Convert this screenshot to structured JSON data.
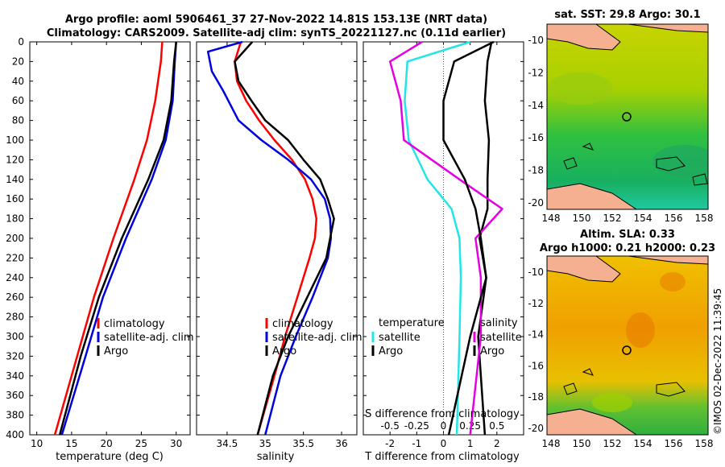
{
  "header": {
    "line1": "Argo profile: aoml 5906461_37 27-Nov-2022 14.81S 153.13E (NRT data)",
    "line2": "Climatology: CARS2009. Satellite-adj clim: synTS_20221127.nc (0.11d earlier)"
  },
  "colors": {
    "climatology": "#ff0000",
    "satellite": "#0000dd",
    "argo": "#000000",
    "t_diff": "#22e6e6",
    "s_diff": "#e600e6"
  },
  "depth_ticks": [
    "0",
    "20",
    "40",
    "60",
    "80",
    "100",
    "120",
    "140",
    "160",
    "180",
    "200",
    "220",
    "240",
    "260",
    "280",
    "300",
    "320",
    "340",
    "360",
    "380",
    "400"
  ],
  "chart_data": [
    {
      "type": "line",
      "title": "",
      "xlabel": "temperature (deg C)",
      "ylabel": "depth",
      "xlim": [
        9,
        32
      ],
      "ylim": [
        400,
        0
      ],
      "xticks": [
        "10",
        "15",
        "20",
        "25",
        "30"
      ],
      "legend": [
        "climatology",
        "satellite-adj. clim",
        "Argo"
      ],
      "series": [
        {
          "name": "climatology",
          "depth": [
            0,
            20,
            60,
            100,
            140,
            200,
            260,
            320,
            400
          ],
          "values": [
            28.0,
            27.8,
            27.0,
            25.8,
            24.0,
            21.0,
            18.2,
            15.8,
            12.6
          ]
        },
        {
          "name": "satellite-adj. clim",
          "depth": [
            0,
            20,
            60,
            100,
            140,
            200,
            260,
            320,
            400
          ],
          "values": [
            30.0,
            29.8,
            29.5,
            28.5,
            26.5,
            22.8,
            19.5,
            17.0,
            13.6
          ]
        },
        {
          "name": "Argo",
          "depth": [
            0,
            20,
            60,
            100,
            140,
            200,
            260,
            320,
            400
          ],
          "values": [
            30.0,
            29.7,
            29.3,
            28.2,
            26.0,
            22.2,
            18.9,
            16.3,
            13.3
          ]
        }
      ]
    },
    {
      "type": "line",
      "xlabel": "salinity",
      "ylabel": "depth",
      "xlim": [
        34.1,
        36.2
      ],
      "ylim": [
        400,
        0
      ],
      "xticks": [
        "34.5",
        "35",
        "35.5",
        "36"
      ],
      "legend": [
        "climatology",
        "satellite-adj. clim",
        "Argo"
      ],
      "series": [
        {
          "name": "climatology",
          "depth": [
            0,
            20,
            40,
            60,
            80,
            100,
            120,
            140,
            160,
            180,
            200,
            220,
            260,
            300,
            340,
            400
          ],
          "values": [
            34.68,
            34.6,
            34.63,
            34.75,
            34.92,
            35.12,
            35.35,
            35.52,
            35.62,
            35.67,
            35.65,
            35.58,
            35.42,
            35.26,
            35.12,
            34.9
          ]
        },
        {
          "name": "satellite-adj. clim",
          "depth": [
            0,
            10,
            30,
            50,
            80,
            100,
            120,
            140,
            160,
            180,
            200,
            220,
            260,
            300,
            340,
            400
          ],
          "values": [
            34.7,
            34.25,
            34.3,
            34.45,
            34.65,
            34.95,
            35.3,
            35.6,
            35.78,
            35.85,
            35.86,
            35.82,
            35.62,
            35.4,
            35.2,
            35.0
          ]
        },
        {
          "name": "Argo",
          "depth": [
            0,
            20,
            40,
            60,
            80,
            100,
            120,
            140,
            160,
            180,
            200,
            220,
            260,
            300,
            340,
            400
          ],
          "values": [
            34.83,
            34.6,
            34.65,
            34.82,
            35.0,
            35.3,
            35.5,
            35.72,
            35.82,
            35.9,
            35.85,
            35.8,
            35.55,
            35.3,
            35.1,
            34.9
          ]
        }
      ]
    },
    {
      "type": "line",
      "xlabel": "T difference from climatology",
      "x2label": "S difference from climatology",
      "ylabel": "depth",
      "xlim": [
        -3,
        3
      ],
      "ylim": [
        400,
        0
      ],
      "xticks": [
        "-2",
        "-1",
        "0",
        "1",
        "2"
      ],
      "x2ticks": [
        "-0.5",
        "-0.25",
        "0",
        "0.25",
        "0.5"
      ],
      "legend": [
        "temperature",
        "satellite",
        "Argo",
        "salinity",
        "satellite",
        "Argo"
      ],
      "series": [
        {
          "name": "temperature satellite",
          "depth": [
            0,
            20,
            60,
            100,
            140,
            170,
            200,
            240,
            300,
            400
          ],
          "values": [
            1.0,
            -1.35,
            -1.45,
            -1.3,
            -0.6,
            0.3,
            0.6,
            0.65,
            0.6,
            0.5
          ]
        },
        {
          "name": "temperature Argo",
          "depth": [
            0,
            20,
            60,
            100,
            140,
            170,
            200,
            240,
            300,
            400
          ],
          "values": [
            1.8,
            1.65,
            1.55,
            1.7,
            1.65,
            1.65,
            1.35,
            1.6,
            1.3,
            1.55
          ]
        },
        {
          "name": "salinity satellite",
          "depth": [
            0,
            20,
            60,
            100,
            140,
            170,
            200,
            240,
            300,
            400
          ],
          "values": [
            -0.2,
            -0.5,
            -0.4,
            -0.37,
            0.15,
            0.55,
            0.3,
            0.35,
            0.35,
            0.25
          ]
        },
        {
          "name": "salinity Argo",
          "depth": [
            0,
            20,
            60,
            100,
            140,
            170,
            200,
            240,
            300,
            400
          ],
          "values": [
            0.47,
            0.1,
            0.0,
            0.0,
            0.2,
            0.3,
            0.35,
            0.4,
            0.25,
            0.05
          ]
        }
      ]
    }
  ],
  "maps": [
    {
      "title": "sat. SST: 29.8 Argo: 30.1",
      "title2": "",
      "xticks": [
        "148",
        "150",
        "152",
        "154",
        "156",
        "158"
      ],
      "yticks": [
        "-10",
        "-12",
        "-14",
        "-16",
        "-18",
        "-20"
      ]
    },
    {
      "title": "Altim. SLA: 0.33",
      "title2": "Argo h1000: 0.21 h2000: 0.23",
      "xticks": [
        "148",
        "150",
        "152",
        "154",
        "156",
        "158"
      ],
      "yticks": [
        "-10",
        "-12",
        "-14",
        "-16",
        "-18",
        "-20"
      ]
    }
  ],
  "timestamp": "©IMOS 02-Dec-2022 11:39:45"
}
